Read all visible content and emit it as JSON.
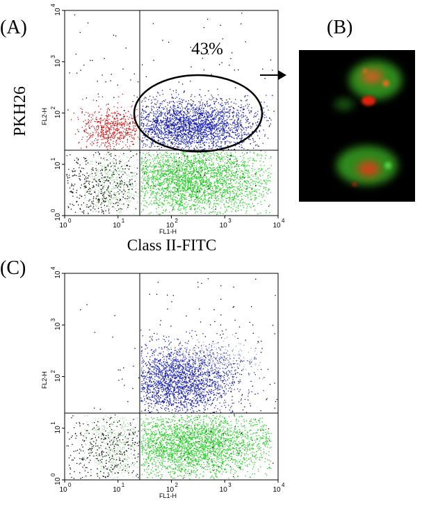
{
  "panels": [
    {
      "label": "(A)",
      "y_title": "PKH26",
      "x_title": "Class II-FITC",
      "x_axis": "FL1-H",
      "y_axis": "FL2-H",
      "percent": "43%"
    },
    {
      "label": "(B)"
    },
    {
      "label": "(C)",
      "x_axis": "FL1-H",
      "y_axis": "FL2-H"
    }
  ],
  "ticks": [
    {
      "base": "10",
      "exp": "0"
    },
    {
      "base": "10",
      "exp": "1"
    },
    {
      "base": "10",
      "exp": "2"
    },
    {
      "base": "10",
      "exp": "3"
    },
    {
      "base": "10",
      "exp": "4"
    }
  ]
}
